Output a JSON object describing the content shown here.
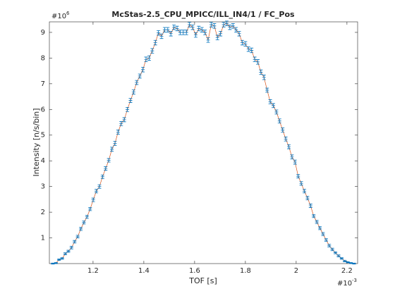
{
  "chart_data": {
    "type": "errorbar_line",
    "title": "McStas-2.5_CPU_MPICC/ILL_IN4/1 / FC_Pos",
    "xlabel": "TOF [s]",
    "ylabel": "Intensity [n/s/bin]",
    "x_multiplier": "#10",
    "x_exponent": "-3",
    "y_multiplier": "#10",
    "y_exponent": "6",
    "line_color": "#d95319",
    "errorbar_color": "#0072bd",
    "xlim": [
      1.028,
      2.242
    ],
    "ylim": [
      0,
      9.41
    ],
    "xticks": [
      1.2,
      1.4,
      1.6,
      1.8,
      2,
      2.2
    ],
    "yticks": [
      1,
      2,
      3,
      4,
      5,
      6,
      7,
      8,
      9
    ],
    "x": [
      1.0417,
      1.0539,
      1.0662,
      1.0784,
      1.0906,
      1.1029,
      1.1151,
      1.1273,
      1.1395,
      1.1518,
      1.164,
      1.1762,
      1.1885,
      1.2007,
      1.2129,
      1.2252,
      1.2374,
      1.2496,
      1.2618,
      1.2741,
      1.2863,
      1.2985,
      1.3108,
      1.323,
      1.3352,
      1.3475,
      1.3597,
      1.3719,
      1.3841,
      1.3964,
      1.4086,
      1.4208,
      1.4331,
      1.4453,
      1.4575,
      1.4698,
      1.482,
      1.4942,
      1.5064,
      1.5187,
      1.5309,
      1.5431,
      1.5554,
      1.5676,
      1.5798,
      1.5921,
      1.6043,
      1.6165,
      1.6287,
      1.641,
      1.6532,
      1.6654,
      1.6777,
      1.6899,
      1.7021,
      1.7144,
      1.7266,
      1.7388,
      1.751,
      1.7633,
      1.7755,
      1.7877,
      1.8,
      1.8122,
      1.8244,
      1.8367,
      1.8489,
      1.8611,
      1.8733,
      1.8856,
      1.8978,
      1.91,
      1.9223,
      1.9345,
      1.9467,
      1.959,
      1.9712,
      1.9834,
      1.9956,
      2.0079,
      2.0201,
      2.0323,
      2.0446,
      2.0568,
      2.069,
      2.0813,
      2.0935,
      2.1057,
      2.1179,
      2.1302,
      2.1424,
      2.1546,
      2.1669,
      2.1791,
      2.1913,
      2.2036,
      2.2158,
      2.228
    ],
    "values": [
      0,
      0.02,
      0.15,
      0.2,
      0.38,
      0.48,
      0.62,
      0.85,
      1.05,
      1.35,
      1.6,
      1.82,
      2.12,
      2.48,
      2.82,
      3.0,
      3.38,
      3.7,
      4.02,
      4.45,
      4.68,
      5.12,
      5.45,
      5.6,
      6.0,
      6.35,
      6.68,
      7.05,
      7.3,
      7.55,
      7.95,
      8.0,
      8.28,
      8.6,
      8.98,
      8.85,
      9.1,
      9.1,
      8.95,
      9.2,
      9.15,
      9.0,
      9.0,
      9.0,
      9.3,
      9.2,
      8.9,
      9.15,
      9.1,
      9.0,
      8.7,
      9.3,
      9.25,
      8.8,
      8.95,
      9.3,
      9.35,
      9.2,
      9.25,
      9.1,
      8.95,
      8.6,
      8.55,
      8.35,
      8.3,
      7.95,
      7.85,
      7.45,
      7.25,
      6.75,
      6.3,
      6.15,
      5.9,
      5.55,
      5.2,
      4.85,
      4.55,
      4.15,
      3.95,
      3.4,
      3.12,
      2.82,
      2.55,
      2.25,
      1.85,
      1.62,
      1.38,
      1.15,
      0.92,
      0.7,
      0.55,
      0.42,
      0.3,
      0.2,
      0.1,
      0.05,
      0.02,
      0
    ],
    "errors": [
      0.02,
      0.02,
      0.03,
      0.03,
      0.04,
      0.04,
      0.05,
      0.05,
      0.05,
      0.06,
      0.06,
      0.06,
      0.06,
      0.07,
      0.07,
      0.07,
      0.07,
      0.07,
      0.07,
      0.08,
      0.08,
      0.08,
      0.08,
      0.08,
      0.08,
      0.08,
      0.08,
      0.08,
      0.08,
      0.09,
      0.09,
      0.09,
      0.09,
      0.09,
      0.09,
      0.09,
      0.09,
      0.09,
      0.09,
      0.09,
      0.09,
      0.09,
      0.09,
      0.09,
      0.09,
      0.09,
      0.09,
      0.09,
      0.09,
      0.09,
      0.09,
      0.09,
      0.09,
      0.09,
      0.09,
      0.09,
      0.09,
      0.09,
      0.09,
      0.09,
      0.09,
      0.09,
      0.09,
      0.09,
      0.09,
      0.09,
      0.09,
      0.09,
      0.09,
      0.08,
      0.08,
      0.08,
      0.08,
      0.08,
      0.08,
      0.08,
      0.08,
      0.08,
      0.08,
      0.07,
      0.07,
      0.07,
      0.07,
      0.07,
      0.06,
      0.06,
      0.06,
      0.06,
      0.05,
      0.05,
      0.05,
      0.04,
      0.04,
      0.03,
      0.03,
      0.02,
      0.02,
      0.02
    ]
  }
}
